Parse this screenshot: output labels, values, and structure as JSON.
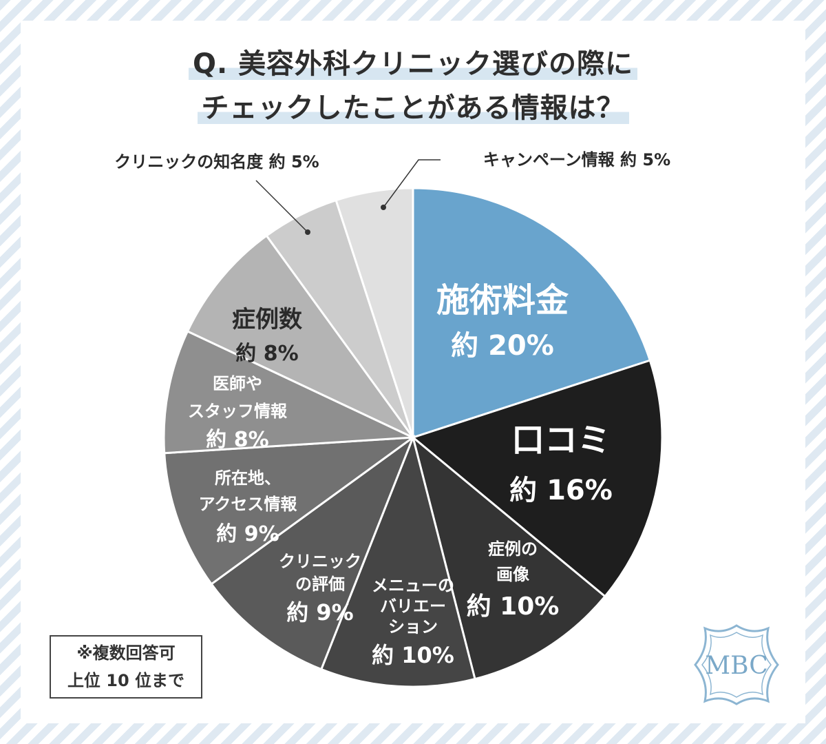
{
  "title": {
    "line1": "Q. 美容外科クリニック選びの際に",
    "line2": "チェックしたことがある情報は？"
  },
  "note": {
    "line1": "※複数回答可",
    "line2": "上位 10 位まで"
  },
  "logo_text": "MBC",
  "chart_data": {
    "type": "pie",
    "title": "Q. 美容外科クリニック選びの際にチェックしたことがある情報は？",
    "slices": [
      {
        "label": "施術料金",
        "value": 20,
        "value_label": "約 20%",
        "color": "#69a4cd"
      },
      {
        "label": "口コミ",
        "value": 16,
        "value_label": "約 16%",
        "color": "#1e1e1e"
      },
      {
        "label": "症例の画像",
        "value": 10,
        "value_label": "約 10%",
        "color": "#343434"
      },
      {
        "label": "メニューのバリエーション",
        "value": 10,
        "value_label": "約 10%",
        "color": "#454545"
      },
      {
        "label": "クリニックの評価",
        "value": 9,
        "value_label": "約 9%",
        "color": "#5a5a5a"
      },
      {
        "label": "所在地、アクセス情報",
        "value": 9,
        "value_label": "約 9%",
        "color": "#717171"
      },
      {
        "label": "医師やスタッフ情報",
        "value": 8,
        "value_label": "約 8%",
        "color": "#8f8f8f"
      },
      {
        "label": "症例数",
        "value": 8,
        "value_label": "約 8%",
        "color": "#b4b4b4"
      },
      {
        "label": "クリニックの知名度",
        "value": 5,
        "value_label": "約 5%",
        "color": "#cccccc"
      },
      {
        "label": "キャンペーン情報",
        "value": 5,
        "value_label": "約 5%",
        "color": "#e0e0e0"
      }
    ]
  }
}
